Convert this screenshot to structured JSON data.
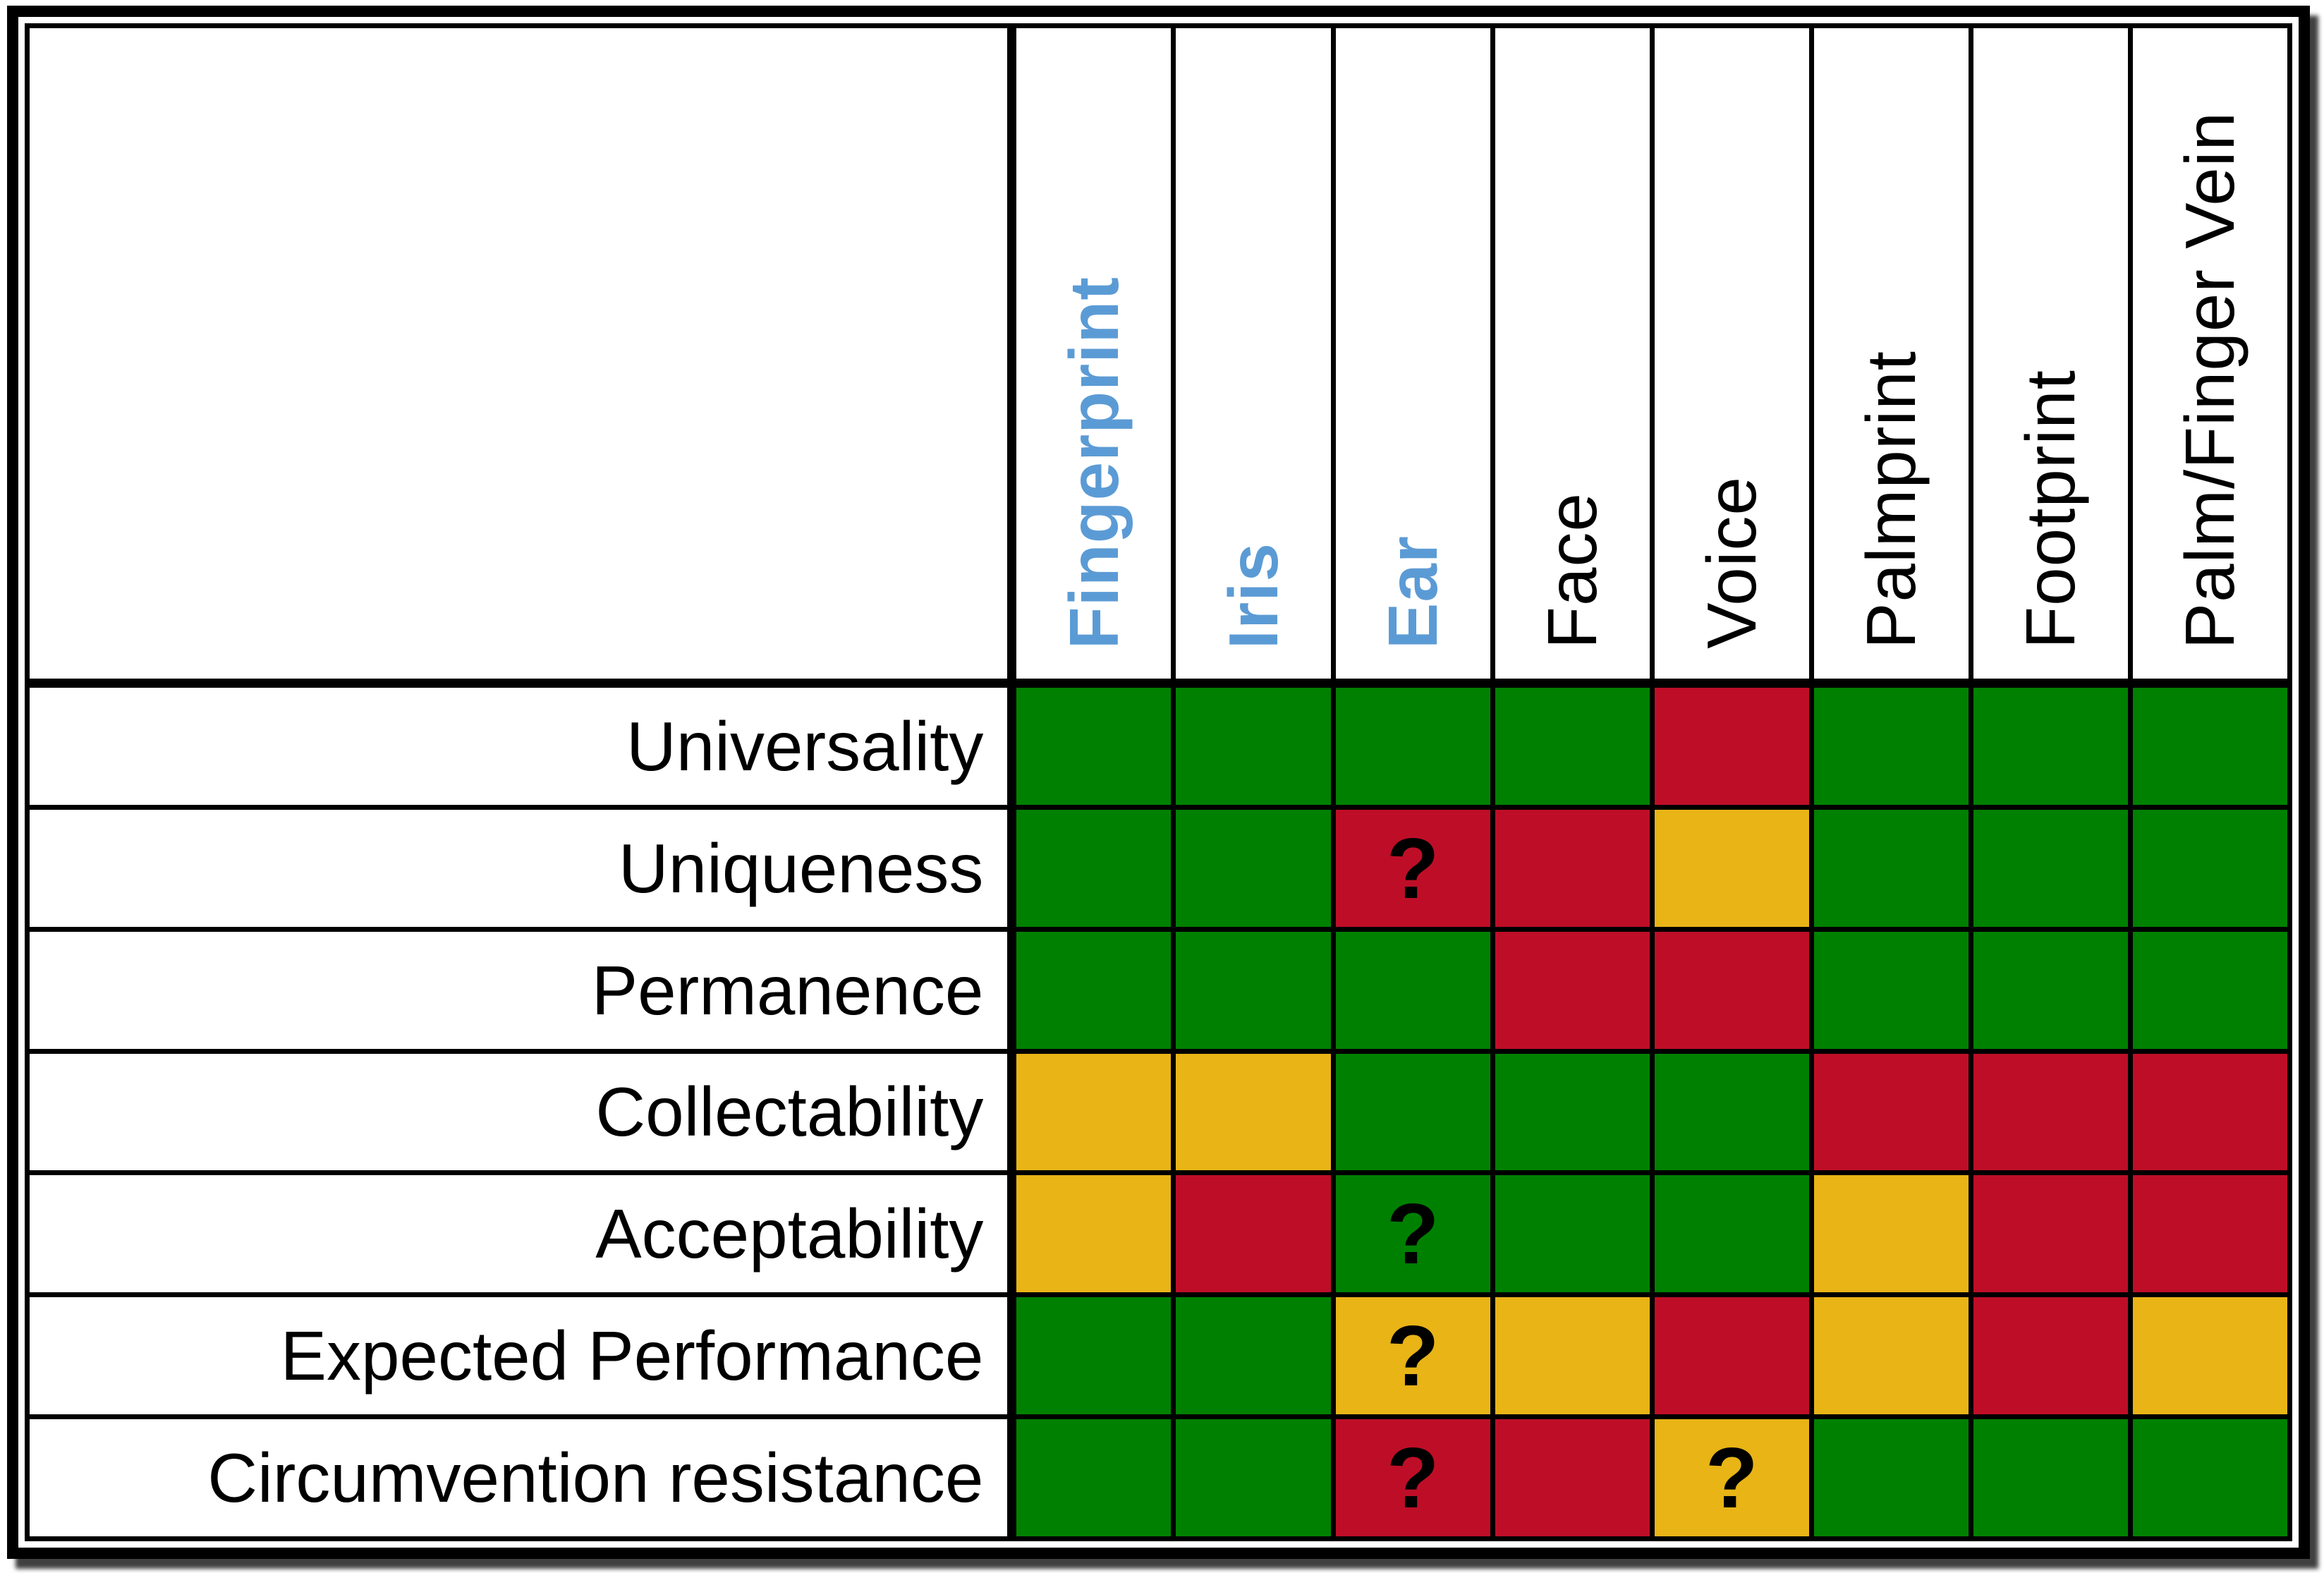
{
  "chart_data": {
    "type": "heatmap",
    "title": "",
    "x_labels": [
      "Fingerprint",
      "Iris",
      "Ear",
      "Face",
      "Voice",
      "Palmprint",
      "Footprint",
      "Palm/Finger Vein"
    ],
    "x_label_styles": [
      "blue",
      "blue",
      "blue",
      "black",
      "black",
      "black",
      "black",
      "black"
    ],
    "y_labels": [
      "Universality",
      "Uniqueness",
      "Permanence",
      "Collectability",
      "Acceptability",
      "Expected Performance",
      "Circumvention resistance"
    ],
    "values": [
      [
        "green",
        "green",
        "green",
        "green",
        "red",
        "green",
        "green",
        "green"
      ],
      [
        "green",
        "green",
        "red",
        "red",
        "yellow",
        "green",
        "green",
        "green"
      ],
      [
        "green",
        "green",
        "green",
        "red",
        "red",
        "green",
        "green",
        "green"
      ],
      [
        "yellow",
        "yellow",
        "green",
        "green",
        "green",
        "red",
        "red",
        "red"
      ],
      [
        "yellow",
        "red",
        "green",
        "green",
        "green",
        "yellow",
        "red",
        "red"
      ],
      [
        "green",
        "green",
        "yellow",
        "yellow",
        "red",
        "yellow",
        "red",
        "yellow"
      ],
      [
        "green",
        "green",
        "red",
        "red",
        "yellow",
        "green",
        "green",
        "green"
      ]
    ],
    "marks": [
      [
        "",
        "",
        "",
        "",
        "",
        "",
        "",
        ""
      ],
      [
        "",
        "",
        "?",
        "",
        "",
        "",
        "",
        ""
      ],
      [
        "",
        "",
        "",
        "",
        "",
        "",
        "",
        ""
      ],
      [
        "",
        "",
        "",
        "",
        "",
        "",
        "",
        ""
      ],
      [
        "",
        "",
        "?",
        "",
        "",
        "",
        "",
        ""
      ],
      [
        "",
        "",
        "?",
        "",
        "",
        "",
        "",
        ""
      ],
      [
        "",
        "",
        "?",
        "",
        "?",
        "",
        "",
        ""
      ]
    ],
    "colors": {
      "green": "#008000",
      "yellow": "#E8B416",
      "red": "#BE0E27"
    },
    "header_text_colors": {
      "blue": "#5B9BD5",
      "black": "#000000"
    },
    "grid": true,
    "legend_position": "none"
  }
}
